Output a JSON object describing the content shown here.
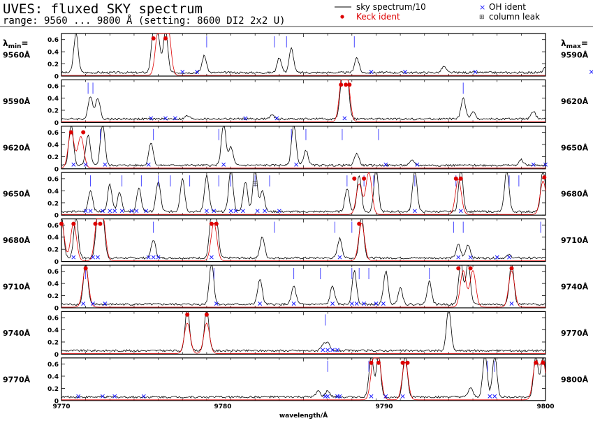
{
  "header": {
    "title": "UVES: fluxed SKY spectrum",
    "subtitle": "range: 9560 ... 9800 Å (setting: 8600 DI2 2x2 U)"
  },
  "legend": {
    "sky": "sky spectrum/10",
    "keck": "Keck ident",
    "oh": "OH ident",
    "leak": "column leak"
  },
  "labels": {
    "lmin_prefix": "λ",
    "lmin_sub": "min",
    "lmin_suffix": "=",
    "lmax_prefix": "λ",
    "lmax_sub": "max",
    "lmax_suffix": "="
  },
  "colors": {
    "sky": "#000000",
    "keck": "#dd0000",
    "oh": "#1a1aff",
    "marker": "#3333ff",
    "frame": "#000000"
  },
  "chart_data": [
    {
      "type": "line",
      "panel": 1,
      "lambda_min": "9560Å",
      "lambda_max": "9590Å",
      "ylim": [
        0,
        0.7
      ],
      "yticks": [
        "0",
        "0.2",
        "0.4",
        "0.6"
      ],
      "peaks": [
        [
          0.6,
          0.65
        ],
        [
          3.8,
          0.7
        ],
        [
          4.0,
          0.55
        ],
        [
          4.3,
          0.7
        ],
        [
          5.9,
          0.28
        ],
        [
          9.0,
          0.25
        ],
        [
          9.5,
          0.4
        ],
        [
          12.2,
          0.25
        ],
        [
          15.8,
          0.1
        ],
        [
          20.0,
          0.08
        ],
        [
          23.0,
          0.06
        ],
        [
          24.0,
          0.05
        ]
      ],
      "keck": [
        [
          4.0,
          0.7
        ],
        [
          4.2,
          0.65
        ],
        [
          4.4,
          0.75
        ]
      ],
      "keck_marks": [
        [
          3.8,
          0.62
        ],
        [
          4.3,
          0.62
        ]
      ],
      "oh": [
        5.0,
        5.6,
        12.8,
        14.2,
        17.1,
        21.9
      ],
      "ticks": [
        6.0,
        8.8,
        9.3,
        12.1
      ]
    },
    {
      "type": "line",
      "panel": 2,
      "lambda_min": "9590Å",
      "lambda_max": "9620Å",
      "ylim": [
        0,
        0.7
      ],
      "yticks": [
        "0",
        "0.2",
        "0.4",
        "0.6"
      ],
      "peaks": [
        [
          1.2,
          0.38
        ],
        [
          1.5,
          0.35
        ],
        [
          5.2,
          0.05
        ],
        [
          8.7,
          0.06
        ],
        [
          11.6,
          0.7
        ],
        [
          11.8,
          0.7
        ],
        [
          16.6,
          0.35
        ],
        [
          17.0,
          0.12
        ],
        [
          19.5,
          0.12
        ]
      ],
      "keck": [
        [
          11.6,
          0.7
        ],
        [
          11.8,
          0.7
        ]
      ],
      "keck_marks": [
        [
          11.55,
          0.62
        ],
        [
          11.75,
          0.62
        ],
        [
          11.9,
          0.62
        ]
      ],
      "oh": [
        3.7,
        4.3,
        4.7,
        7.6,
        8.9,
        11.7
      ],
      "ticks": [
        1.1,
        1.3,
        16.6
      ]
    },
    {
      "type": "line",
      "panel": 3,
      "lambda_min": "9620Å",
      "lambda_max": "9650Å",
      "ylim": [
        0,
        0.7
      ],
      "yticks": [
        "0",
        "0.2",
        "0.4",
        "0.6"
      ],
      "peaks": [
        [
          0.4,
          0.7
        ],
        [
          1.1,
          0.5
        ],
        [
          1.7,
          0.7
        ],
        [
          3.7,
          0.38
        ],
        [
          6.7,
          0.7
        ],
        [
          7.0,
          0.3
        ],
        [
          9.6,
          0.7
        ],
        [
          10.1,
          0.25
        ],
        [
          12.2,
          0.2
        ],
        [
          14.5,
          0.08
        ],
        [
          19.0,
          0.09
        ]
      ],
      "keck": [
        [
          0.4,
          0.6
        ],
        [
          0.8,
          0.52
        ]
      ],
      "keck_marks": [
        [
          0.4,
          0.6
        ],
        [
          0.9,
          0.6
        ]
      ],
      "oh": [
        0.5,
        1.0,
        1.8,
        3.6,
        6.7,
        9.7,
        13.4,
        14.7,
        19.5,
        20.0
      ],
      "ticks": [
        1.6,
        3.8,
        6.5,
        9.5,
        10.1,
        11.6,
        13.1
      ]
    },
    {
      "type": "line",
      "panel": 4,
      "lambda_min": "9650Å",
      "lambda_max": "9680Å",
      "ylim": [
        0,
        0.7
      ],
      "yticks": [
        "0",
        "0.2",
        "0.4",
        "0.6"
      ],
      "peaks": [
        [
          1.2,
          0.35
        ],
        [
          2.0,
          0.45
        ],
        [
          2.4,
          0.32
        ],
        [
          3.2,
          0.38
        ],
        [
          4.0,
          0.5
        ],
        [
          5.0,
          0.55
        ],
        [
          6.0,
          0.6
        ],
        [
          7.0,
          0.7
        ],
        [
          7.6,
          0.5
        ],
        [
          8.0,
          0.7
        ],
        [
          8.3,
          0.35
        ],
        [
          11.8,
          0.38
        ],
        [
          12.3,
          0.6
        ],
        [
          13.0,
          0.7
        ],
        [
          14.6,
          0.7
        ],
        [
          16.5,
          0.7
        ],
        [
          18.4,
          0.7
        ],
        [
          19.9,
          0.7
        ]
      ],
      "keck": [
        [
          12.3,
          0.5
        ],
        [
          12.7,
          0.7
        ],
        [
          16.4,
          0.58
        ],
        [
          19.9,
          0.55
        ]
      ],
      "keck_marks": [
        [
          12.1,
          0.6
        ],
        [
          12.5,
          0.6
        ],
        [
          16.3,
          0.6
        ],
        [
          16.5,
          0.6
        ],
        [
          19.95,
          0.62
        ]
      ],
      "oh": [
        1.0,
        1.2,
        1.7,
        2.0,
        2.2,
        2.5,
        2.9,
        3.1,
        3.5,
        6.0,
        6.3,
        7.0,
        7.2,
        7.5,
        8.1,
        8.4,
        9.0,
        14.6,
        16.5
      ],
      "ticks": [
        1.2,
        2.5,
        3.3,
        4.0,
        4.5,
        5.3,
        6.5,
        7.0,
        8.0,
        8.6,
        11.8,
        12.5,
        12.9,
        14.6,
        16.3,
        18.5,
        18.9
      ],
      "leak": [
        [
          8.0,
          0.52
        ]
      ]
    },
    {
      "type": "line",
      "panel": 5,
      "lambda_min": "9680Å",
      "lambda_max": "9710Å",
      "ylim": [
        0,
        0.7
      ],
      "yticks": [
        "0",
        "0.2",
        "0.4",
        "0.6"
      ],
      "peaks": [
        [
          0.0,
          0.7
        ],
        [
          0.6,
          0.7
        ],
        [
          1.5,
          0.7
        ],
        [
          1.7,
          0.7
        ],
        [
          3.8,
          0.3
        ],
        [
          6.2,
          0.7
        ],
        [
          6.4,
          0.6
        ],
        [
          8.3,
          0.35
        ],
        [
          11.5,
          0.32
        ],
        [
          12.4,
          0.7
        ],
        [
          16.4,
          0.22
        ],
        [
          16.8,
          0.22
        ],
        [
          18.5,
          0.05
        ]
      ],
      "keck": [
        [
          0.0,
          0.62
        ],
        [
          0.5,
          0.62
        ],
        [
          1.5,
          0.7
        ],
        [
          1.7,
          0.7
        ],
        [
          6.3,
          0.62
        ],
        [
          12.4,
          0.62
        ]
      ],
      "keck_marks": [
        [
          0.0,
          0.62
        ],
        [
          0.5,
          0.62
        ],
        [
          1.4,
          0.62
        ],
        [
          1.6,
          0.62
        ],
        [
          6.2,
          0.62
        ],
        [
          6.4,
          0.62
        ],
        [
          12.3,
          0.62
        ]
      ],
      "oh": [
        0.5,
        1.3,
        1.5,
        3.6,
        3.8,
        4.0,
        6.2,
        11.5,
        16.4,
        16.9,
        18.0,
        18.5
      ],
      "ticks": [
        3.8,
        8.8,
        11.3,
        12.0,
        16.2,
        16.6,
        19.8
      ]
    },
    {
      "type": "line",
      "panel": 6,
      "lambda_min": "9710Å",
      "lambda_max": "9740Å",
      "ylim": [
        0,
        0.7
      ],
      "yticks": [
        "0",
        "0.2",
        "0.4",
        "0.6"
      ],
      "peaks": [
        [
          1.0,
          0.7
        ],
        [
          6.2,
          0.7
        ],
        [
          8.2,
          0.42
        ],
        [
          9.6,
          0.3
        ],
        [
          11.2,
          0.3
        ],
        [
          12.1,
          0.55
        ],
        [
          13.4,
          0.55
        ],
        [
          14.0,
          0.28
        ],
        [
          15.2,
          0.38
        ],
        [
          16.5,
          0.7
        ],
        [
          16.8,
          0.7
        ],
        [
          18.6,
          0.7
        ]
      ],
      "keck": [
        [
          1.0,
          0.65
        ],
        [
          16.6,
          0.6
        ],
        [
          17.0,
          0.6
        ],
        [
          18.6,
          0.6
        ]
      ],
      "keck_marks": [
        [
          1.0,
          0.65
        ],
        [
          16.4,
          0.65
        ],
        [
          16.9,
          0.65
        ],
        [
          18.6,
          0.65
        ]
      ],
      "oh": [
        0.9,
        1.3,
        1.8,
        6.4,
        8.2,
        9.6,
        11.2,
        12.0,
        12.2,
        12.5,
        13.0,
        13.3,
        18.6
      ],
      "ticks": [
        1.0,
        6.3,
        9.6,
        10.7,
        12.0,
        12.3,
        12.7,
        15.2
      ]
    },
    {
      "type": "line",
      "panel": 7,
      "lambda_min": "9740Å",
      "lambda_max": "9770Å",
      "ylim": [
        0,
        0.7
      ],
      "yticks": [
        "0",
        "0.2",
        "0.4",
        "0.6"
      ],
      "peaks": [
        [
          5.2,
          0.7
        ],
        [
          6.0,
          0.7
        ],
        [
          10.8,
          0.1
        ],
        [
          11.0,
          0.12
        ],
        [
          16.0,
          0.7
        ]
      ],
      "keck": [
        [
          5.2,
          0.5
        ],
        [
          6.0,
          0.5
        ]
      ],
      "keck_marks": [
        [
          5.2,
          0.65
        ],
        [
          6.0,
          0.65
        ]
      ],
      "oh": [
        10.8,
        11.0,
        11.2,
        11.4
      ],
      "ticks": [
        10.9
      ]
    },
    {
      "type": "line",
      "panel": 8,
      "lambda_min": "9770Å",
      "lambda_max": "9800Å",
      "ylim": [
        0,
        0.7
      ],
      "yticks": [
        "0",
        "0.2",
        "0.4",
        "0.6"
      ],
      "peaks": [
        [
          10.6,
          0.1
        ],
        [
          11.0,
          0.1
        ],
        [
          12.8,
          0.7
        ],
        [
          13.1,
          0.7
        ],
        [
          14.2,
          0.7
        ],
        [
          16.9,
          0.15
        ],
        [
          17.5,
          0.7
        ],
        [
          17.9,
          0.7
        ],
        [
          19.6,
          0.7
        ],
        [
          19.9,
          0.7
        ]
      ],
      "keck": [
        [
          12.9,
          0.62
        ],
        [
          13.1,
          0.62
        ],
        [
          14.2,
          0.62
        ],
        [
          19.6,
          0.62
        ],
        [
          19.9,
          0.62
        ]
      ],
      "keck_marks": [
        [
          12.8,
          0.62
        ],
        [
          13.1,
          0.62
        ],
        [
          14.1,
          0.62
        ],
        [
          14.3,
          0.62
        ],
        [
          19.6,
          0.62
        ],
        [
          19.9,
          0.62
        ]
      ],
      "oh": [
        0.7,
        1.7,
        2.2,
        3.4,
        10.9,
        11.0,
        11.4,
        11.5,
        12.8,
        13.4,
        14.1,
        17.7,
        17.9
      ],
      "ticks": [
        11.0,
        12.7,
        17.6,
        17.9
      ],
      "x_axis": {
        "ticks": [
          "9770",
          "9780",
          "9790",
          "9800"
        ],
        "label": "wavelength/Å"
      }
    }
  ]
}
